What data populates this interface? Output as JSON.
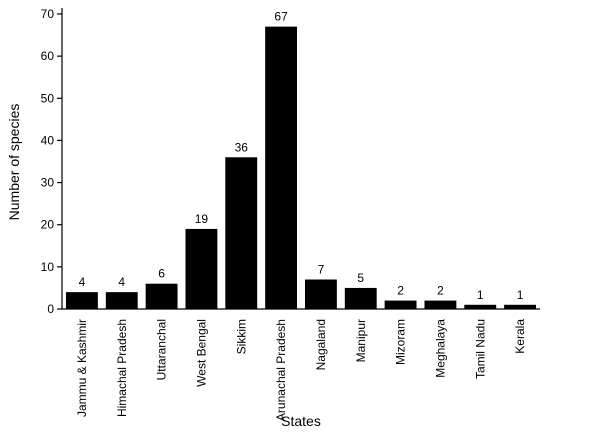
{
  "chart_data": {
    "type": "bar",
    "x_label": "States",
    "y_label": "Number of species",
    "categories": [
      "Jammu & Kashmir",
      "Himachal Pradesh",
      "Uttaranchal",
      "West Bengal",
      "Sikkim",
      "Arunachal Pradesh",
      "Nagaland",
      "Manipur",
      "Mizoram",
      "Meghalaya",
      "Tamil Nadu",
      "Kerala"
    ],
    "values": [
      4,
      4,
      6,
      19,
      36,
      67,
      7,
      5,
      2,
      2,
      1,
      1
    ],
    "color": "#000000",
    "ylim": [
      0,
      70
    ],
    "yticks": [
      0,
      10,
      20,
      30,
      40,
      50,
      60,
      70
    ],
    "grid": false
  }
}
